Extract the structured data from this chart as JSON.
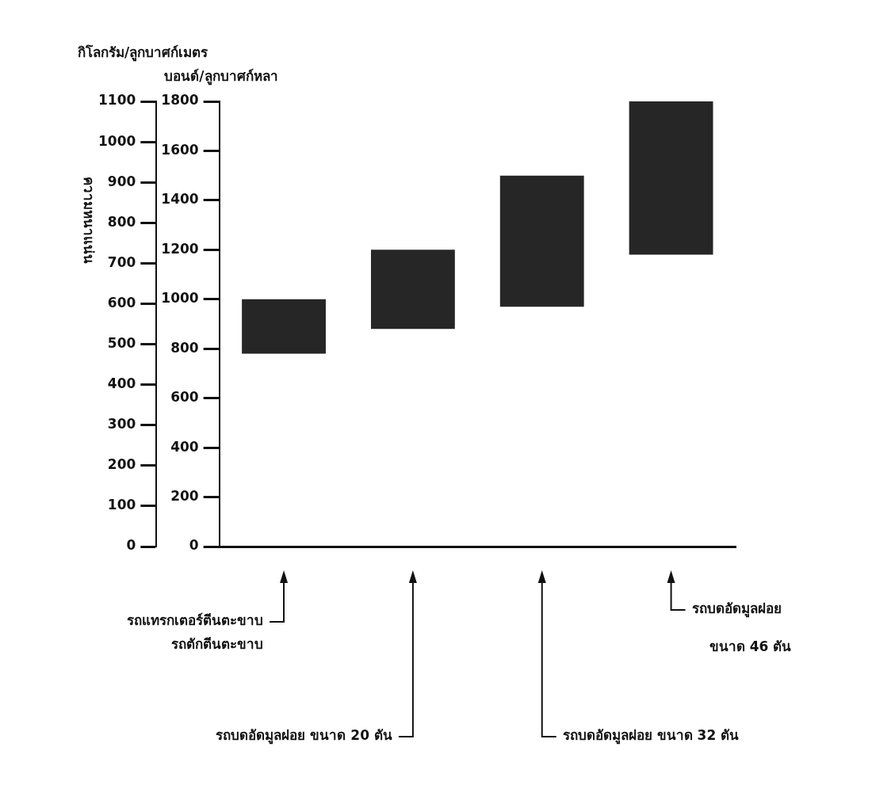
{
  "chart_data": {
    "type": "bar",
    "categories": [
      null,
      null,
      null,
      null
    ],
    "base": [
      780,
      880,
      970,
      1180
    ],
    "values": [
      220,
      320,
      530,
      620
    ],
    "color": "#262626",
    "ylabel": "บอนด์/ลูกบาศก์หลา",
    "y2label": "กิโลกรัม/ลูกบาศก์เมตร",
    "annotations": [
      "ความหนาแน่น",
      "รถแทรกเตอร์ตีนตะขาบ รถตักตีนตะขาบ",
      "รถบดอัดมูลฝอย ขนาด 20 ตัน",
      "รถบดอัดมูลฝอย ขนาด 32 ตัน",
      "รถบดอัดมูลฝอย ขนาด 46 ตัน"
    ],
    "ylim": [
      0,
      1800
    ],
    "yticks": [
      0,
      200,
      400,
      600,
      800,
      1000,
      1200,
      1400,
      1600,
      1800
    ],
    "y2lim": [
      0,
      1100
    ],
    "y2ticks": [
      0,
      100,
      200,
      300,
      400,
      500,
      600,
      700,
      800,
      900,
      1000,
      1100
    ],
    "grid": false,
    "legend": false
  }
}
